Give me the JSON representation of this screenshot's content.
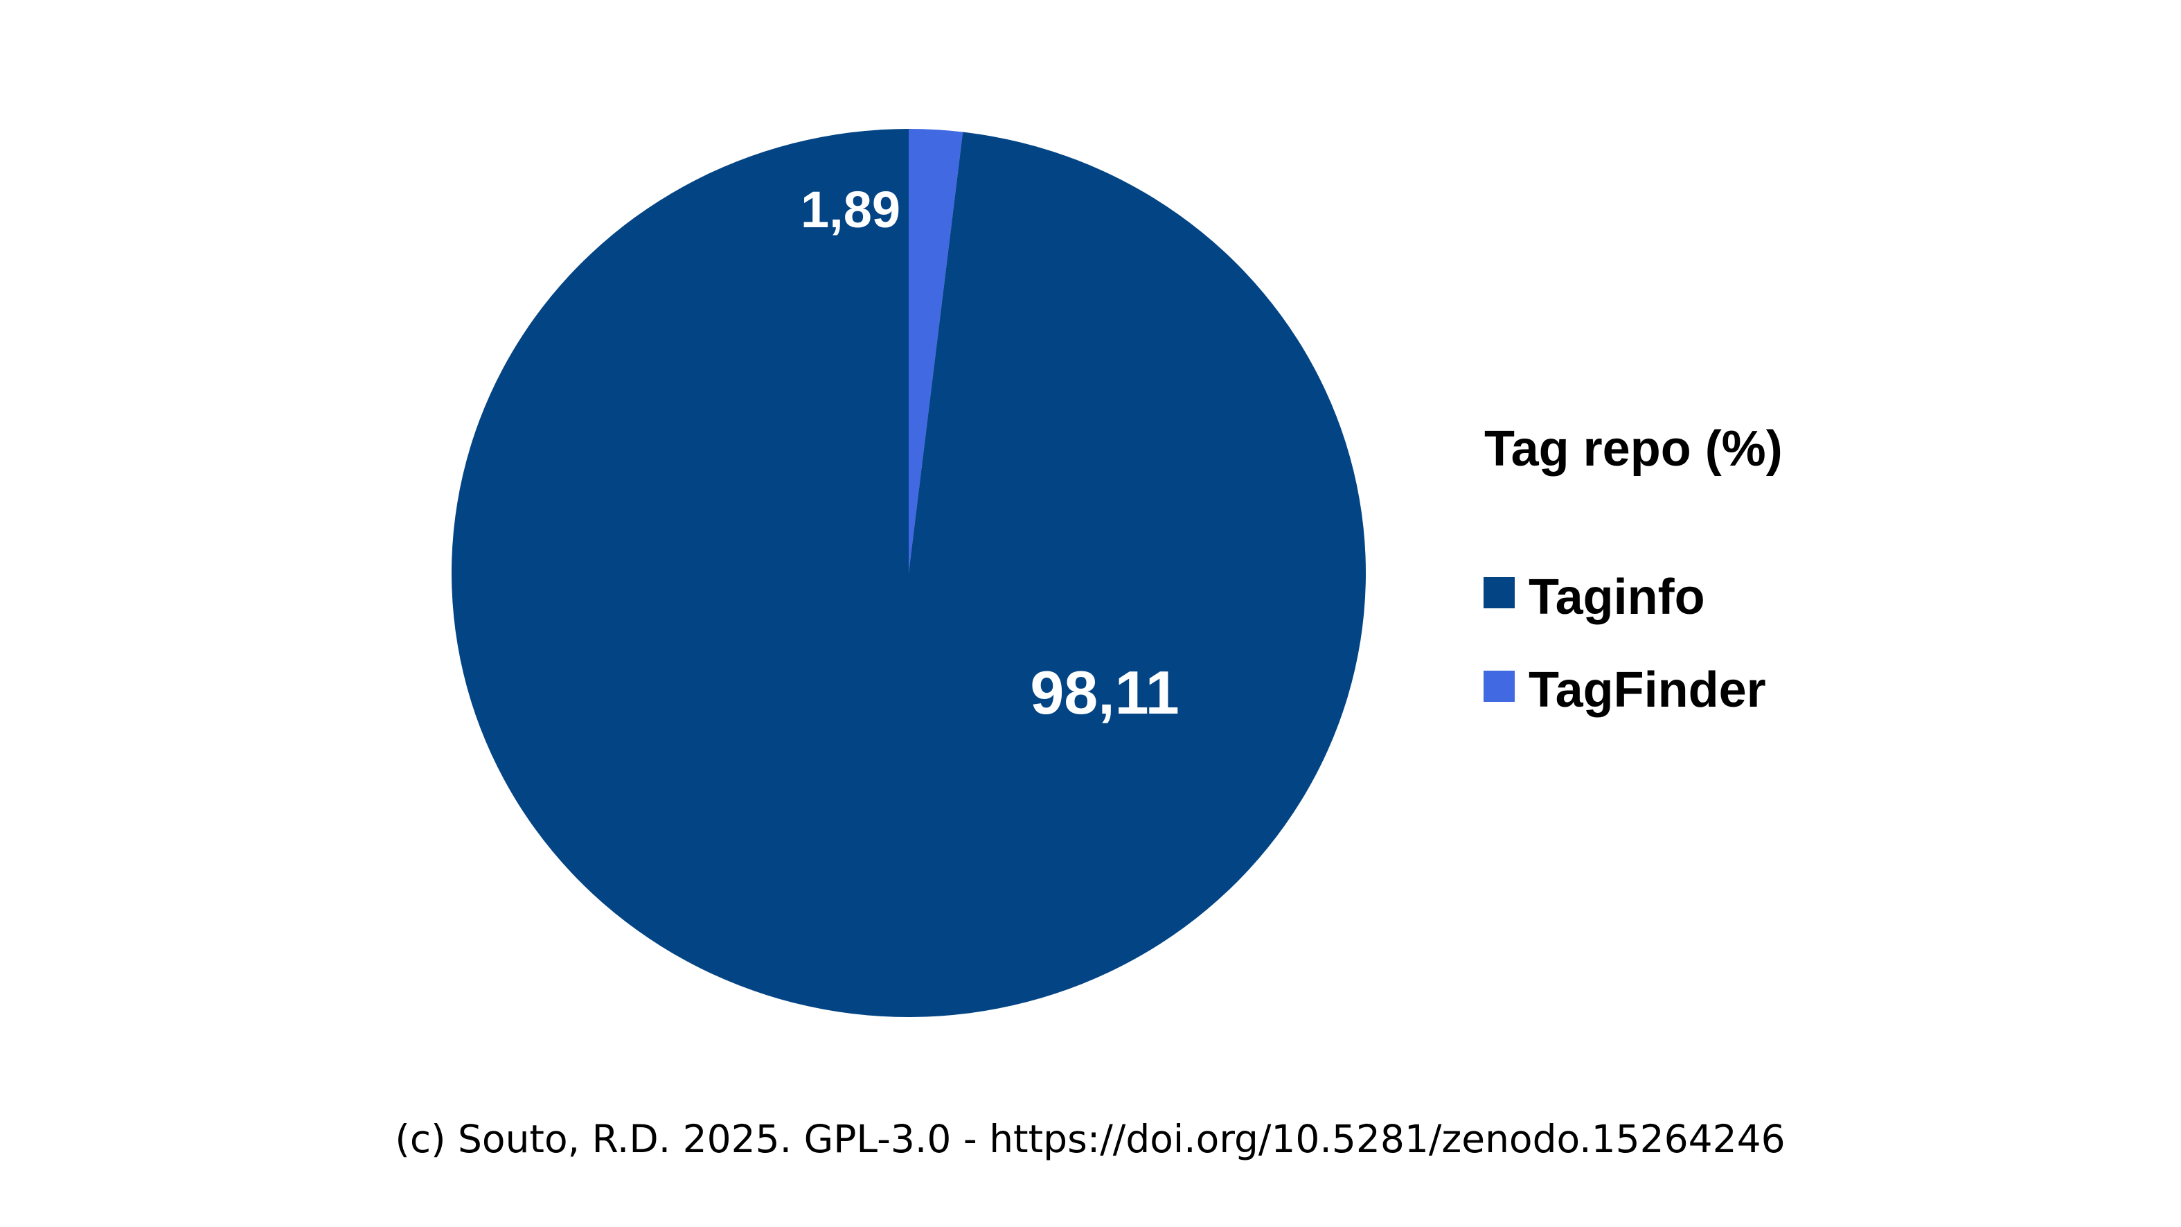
{
  "chart_data": {
    "type": "pie",
    "legend_title": "Tag repo (%)",
    "legend_position": "right",
    "categories": [
      "Taginfo",
      "TagFinder"
    ],
    "values": [
      98.11,
      1.89
    ],
    "value_labels": [
      "98,11",
      "1,89"
    ],
    "colors": [
      "#024484",
      "#4169E1"
    ],
    "start_angle": "top, clockwise with TagFinder first"
  },
  "caption": "(c) Souto, R.D. 2025. GPL-3.0 - https://doi.org/10.5281/zenodo.15264246"
}
